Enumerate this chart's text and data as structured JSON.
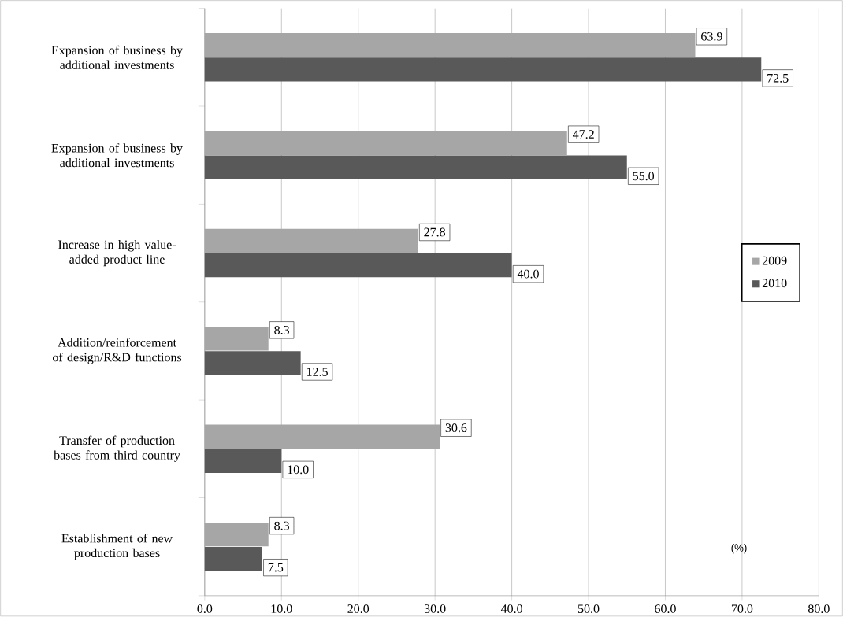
{
  "chart_data": {
    "type": "bar",
    "orientation": "horizontal",
    "categories": [
      "Expansion of business by additional investments",
      "Expansion of business by additional investments",
      "Increase in high value-added product line",
      "Addition/reinforcement of design/R&D functions",
      "Transfer of production bases from third country",
      "Establishment of new production bases"
    ],
    "series": [
      {
        "name": "2009",
        "color": "#a6a6a6",
        "values": [
          63.9,
          47.2,
          27.8,
          8.3,
          30.6,
          8.3
        ],
        "value_labels": [
          "63.9",
          "47.2",
          "27.8",
          "8.3",
          "30.6",
          "8.3"
        ]
      },
      {
        "name": "2010",
        "color": "#595959",
        "values": [
          72.5,
          55.0,
          40.0,
          12.5,
          10.0,
          7.5
        ],
        "value_labels": [
          "72.5",
          "55.0",
          "40.0",
          "12.5",
          "10.0",
          "7.5"
        ]
      }
    ],
    "xlim": [
      0,
      80
    ],
    "xticks": [
      {
        "value": 0,
        "label": "0.0"
      },
      {
        "value": 10,
        "label": "10.0"
      },
      {
        "value": 20,
        "label": "20.0"
      },
      {
        "value": 30,
        "label": "30.0"
      },
      {
        "value": 40,
        "label": "40.0"
      },
      {
        "value": 50,
        "label": "50.0"
      },
      {
        "value": 60,
        "label": "60.0"
      },
      {
        "value": 70,
        "label": "70.0"
      },
      {
        "value": 80,
        "label": "80.0"
      }
    ],
    "grid": "x",
    "legend": "right",
    "annotations": [
      "(%)"
    ]
  }
}
